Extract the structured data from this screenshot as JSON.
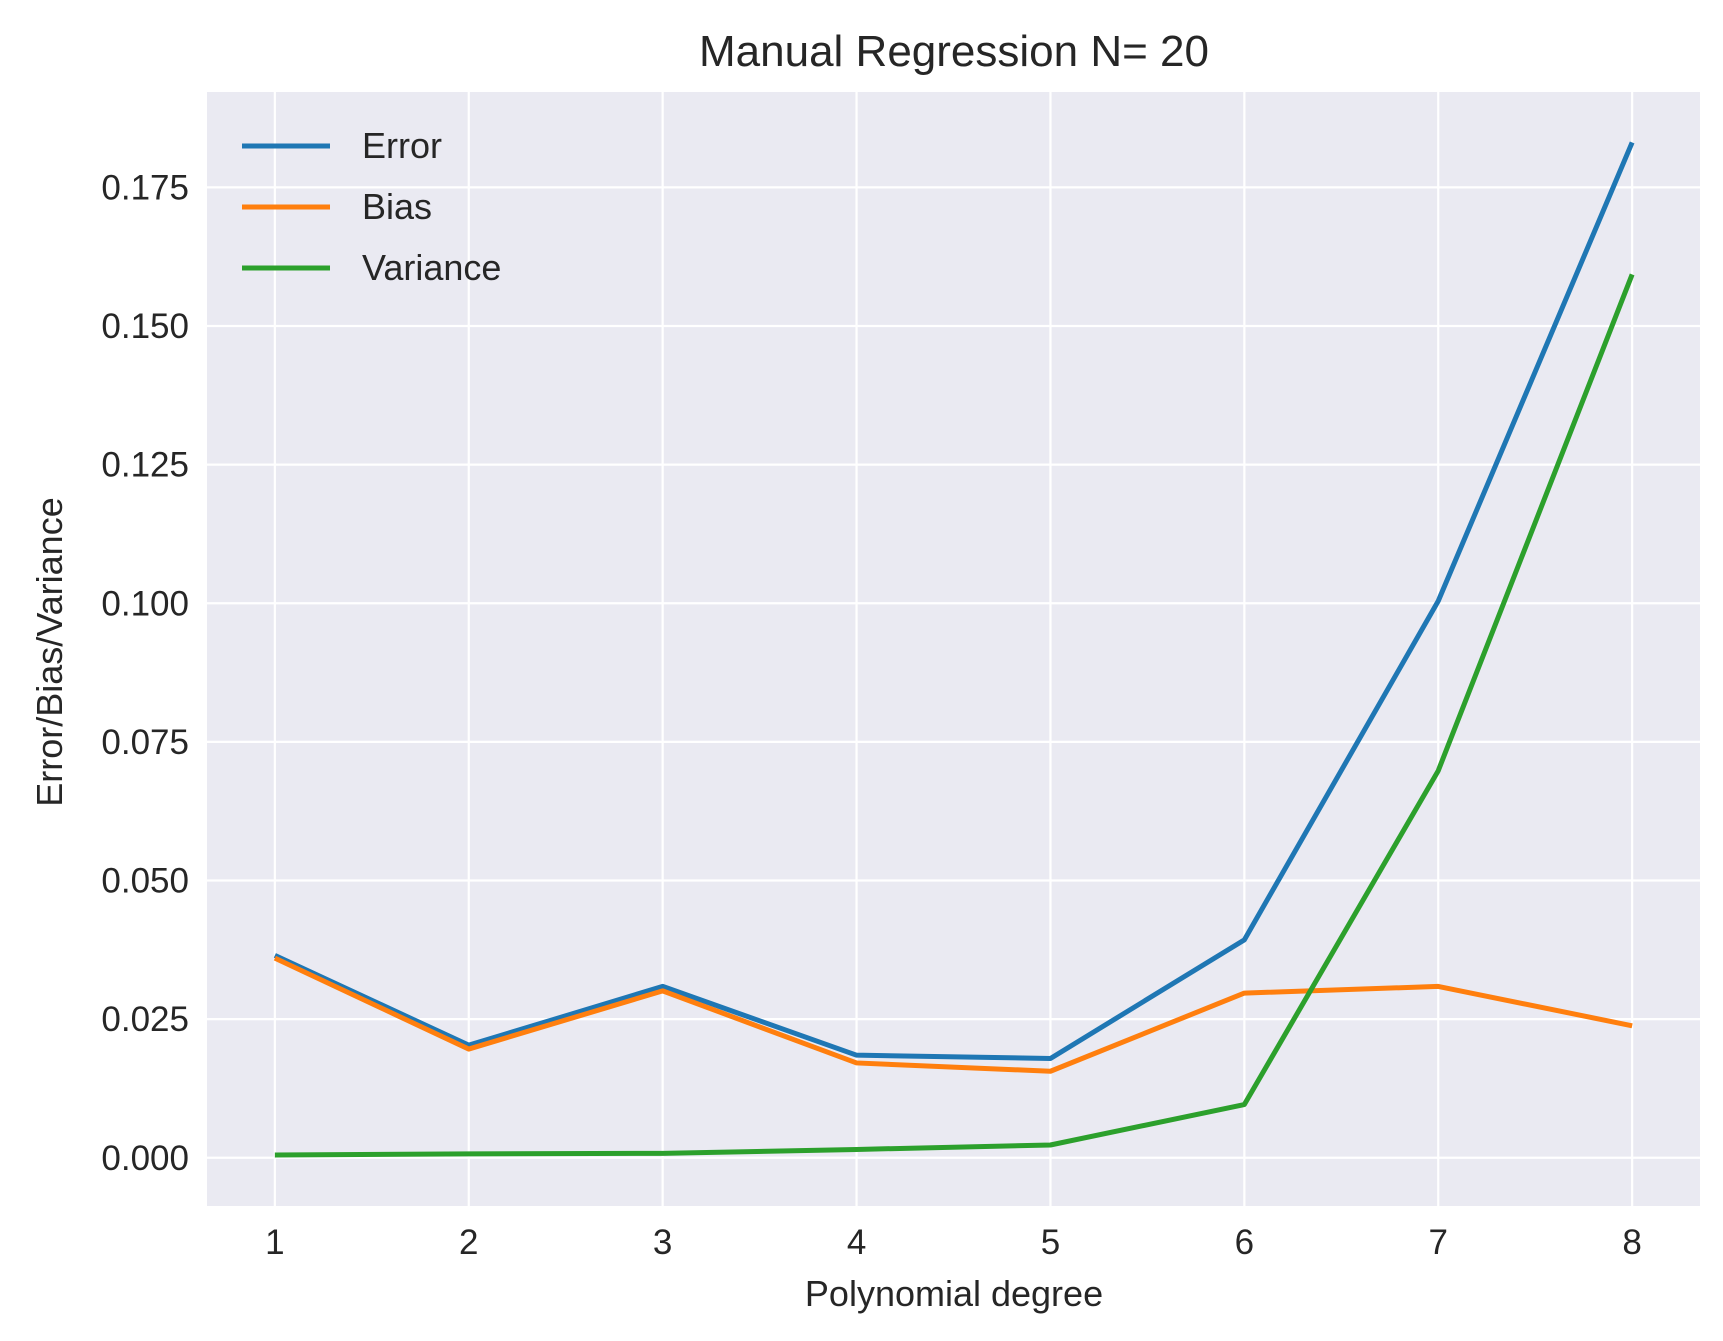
{
  "chart_data": {
    "type": "line",
    "title": "Manual Regression N= 20",
    "xlabel": "Polynomial degree",
    "ylabel": "Error/Bias/Variance",
    "x": [
      1,
      2,
      3,
      4,
      5,
      6,
      7,
      8
    ],
    "x_ticks": [
      "1",
      "2",
      "3",
      "4",
      "5",
      "6",
      "7",
      "8"
    ],
    "xlim": [
      0.65,
      8.35
    ],
    "y_ticks": [
      "0.000",
      "0.025",
      "0.050",
      "0.075",
      "0.100",
      "0.125",
      "0.150",
      "0.175"
    ],
    "ylim": [
      -0.0087,
      0.1922
    ],
    "grid": true,
    "legend_position": "top-left",
    "background_color": "#eaeaf2",
    "series": [
      {
        "name": "Error",
        "color": "#1f77b4",
        "values": [
          0.0365,
          0.0203,
          0.0309,
          0.0185,
          0.0179,
          0.0393,
          0.1004,
          0.1831
        ]
      },
      {
        "name": "Bias",
        "color": "#ff7f0e",
        "values": [
          0.036,
          0.0196,
          0.0301,
          0.0171,
          0.0156,
          0.0297,
          0.0309,
          0.0238
        ]
      },
      {
        "name": "Variance",
        "color": "#2ca02c",
        "values": [
          0.0005,
          0.0007,
          0.0008,
          0.0015,
          0.0023,
          0.0096,
          0.0698,
          0.1593
        ]
      }
    ]
  }
}
